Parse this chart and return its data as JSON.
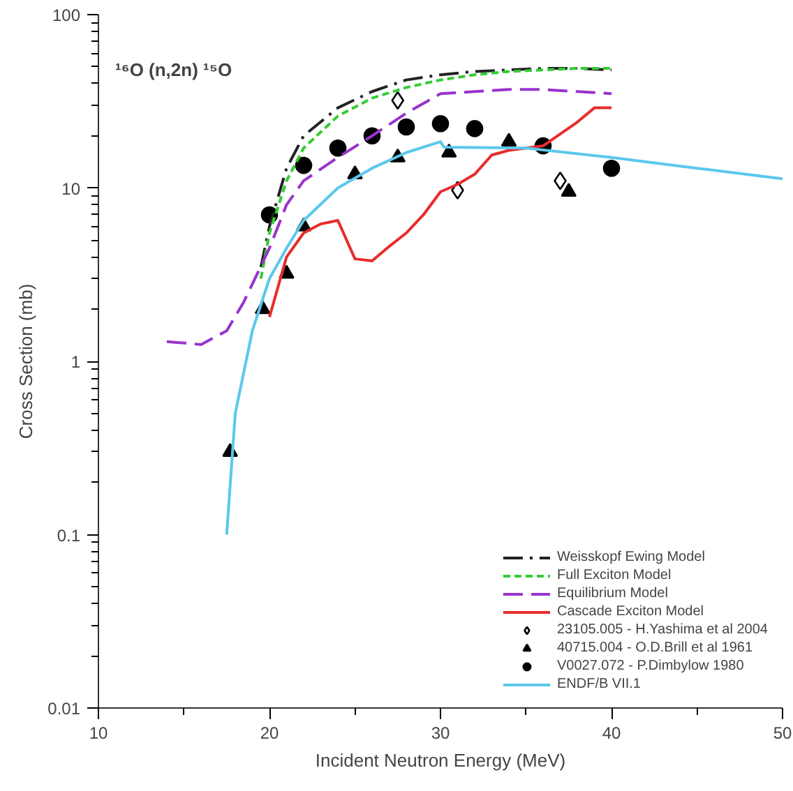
{
  "chart_data": {
    "type": "line",
    "title": "¹⁶O (n,2n) ¹⁵O",
    "xlabel": "Incident Neutron Energy (MeV)",
    "ylabel": "Cross Section (mb)",
    "log": "y",
    "grid": false,
    "legend": "bottom right",
    "xlim": [
      10,
      50
    ],
    "xticks": [
      10,
      {
        "value": 15,
        "label": null
      },
      20,
      {
        "value": 25,
        "label": null
      },
      30,
      {
        "value": 35,
        "label": null
      },
      40,
      {
        "value": 45,
        "label": null
      },
      50
    ],
    "ylim": [
      0.01,
      100
    ],
    "yticks": [
      0.01,
      0.1,
      1,
      10,
      100
    ],
    "series": [
      {
        "name": "Weisskopf Ewing Model",
        "color": "#222222",
        "line_style": "dashdot",
        "x": [
          19.5,
          20,
          21,
          22,
          24,
          26,
          28,
          30,
          32,
          34,
          36,
          38,
          40
        ],
        "values": [
          3.5,
          6,
          13,
          20,
          29,
          36,
          42,
          45,
          47,
          48,
          49,
          49,
          48
        ]
      },
      {
        "name": "Full Exciton Model",
        "color": "#33cc33",
        "line_style": "dashed",
        "x": [
          19.5,
          20,
          21,
          22,
          24,
          26,
          28,
          30,
          32,
          34,
          36,
          38,
          40
        ],
        "values": [
          3,
          5.5,
          11,
          17,
          26,
          33,
          38,
          42,
          45,
          47,
          48,
          49,
          49
        ]
      },
      {
        "name": "Equilibrium Model",
        "color": "#9933cc",
        "line_style": "longdash",
        "x": [
          14,
          16,
          17.5,
          18.5,
          20,
          21,
          22,
          24,
          26,
          28,
          30,
          32,
          34,
          36,
          38,
          40
        ],
        "values": [
          1.3,
          1.25,
          1.5,
          2.2,
          4.5,
          8,
          11,
          15,
          20,
          27,
          35,
          36,
          37,
          37,
          36,
          35
        ]
      },
      {
        "name": "Cascade Exciton Model",
        "color": "#e82c2c",
        "line_style": "solid",
        "x": [
          20,
          21,
          22,
          23,
          24,
          25,
          26,
          27,
          28,
          29,
          30,
          31,
          32,
          33,
          34,
          35,
          36,
          38,
          39,
          40
        ],
        "values": [
          1.8,
          4,
          5.5,
          6.2,
          6.5,
          3.9,
          3.8,
          4.6,
          5.5,
          7,
          9.5,
          10.5,
          12,
          15.5,
          16.5,
          17,
          17.5,
          24,
          29,
          29
        ]
      },
      {
        "name": "23105.005 - H.Yashima et al 2004",
        "color": "#000000",
        "type": "scatter",
        "marker": "diamond",
        "x": [
          27.5,
          31,
          37
        ],
        "values": [
          32,
          9.7,
          11
        ]
      },
      {
        "name": "40715.004 - O.D.Brill et al 1961",
        "color": "#000000",
        "type": "scatter",
        "marker": "triangle",
        "x": [
          17.7,
          19.6,
          21,
          22,
          25,
          27.5,
          30.5,
          34,
          37.5
        ],
        "values": [
          0.3,
          2,
          3.2,
          6,
          12,
          15,
          16,
          18.5,
          9.5
        ]
      },
      {
        "name": "V0027.072 - P.Dimbylow 1980",
        "color": "#000000",
        "type": "scatter",
        "marker": "circle",
        "x": [
          20,
          22,
          24,
          26,
          28,
          30,
          32,
          36,
          40
        ],
        "values": [
          7,
          13.5,
          17,
          20,
          22.5,
          23.5,
          22,
          17.5,
          13
        ]
      },
      {
        "name": "ENDF/B VII.1",
        "color": "#5bc8ec",
        "line_style": "solid",
        "x": [
          17.5,
          18,
          19,
          20,
          21,
          22,
          24,
          26,
          28,
          30,
          30.2,
          35,
          40,
          45,
          50
        ],
        "values": [
          0.1,
          0.5,
          1.5,
          3,
          4.5,
          6.5,
          10,
          13,
          16,
          18.5,
          17.2,
          17,
          15,
          13,
          11.3
        ]
      }
    ]
  }
}
